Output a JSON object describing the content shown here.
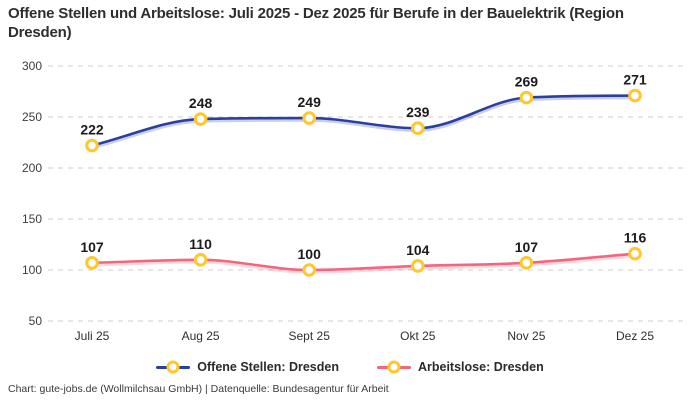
{
  "title": "Offene Stellen und Arbeitslose: Juli 2025 - Dez 2025 für Berufe in der Bauelektrik (Region Dresden)",
  "footer": "Chart: gute-jobs.de (Wollmilchsau GmbH) | Datenquelle: Bundesagentur für Arbeit",
  "colors": {
    "open_positions": "#2a3f9e",
    "unemployed": "#f4657f",
    "marker_ring": "#ffc62e",
    "marker_fill": "#ffffff",
    "grid": "#cccccc",
    "tick_text": "#3d3d3d",
    "label_text": "#1c1c1c"
  },
  "chart_data": {
    "type": "line",
    "categories": [
      "Juli 25",
      "Aug 25",
      "Sept 25",
      "Okt 25",
      "Nov 25",
      "Dez 25"
    ],
    "series": [
      {
        "name": "Offene Stellen: Dresden",
        "color_key": "open_positions",
        "values": [
          222,
          248,
          249,
          239,
          269,
          271
        ]
      },
      {
        "name": "Arbeitslose: Dresden",
        "color_key": "unemployed",
        "values": [
          107,
          110,
          100,
          104,
          107,
          116
        ]
      }
    ],
    "yticks": [
      50,
      100,
      150,
      200,
      250,
      300
    ],
    "ylim": [
      50,
      300
    ],
    "grid": "horizontal-dashed",
    "point_labels": true,
    "legend_position": "bottom"
  }
}
